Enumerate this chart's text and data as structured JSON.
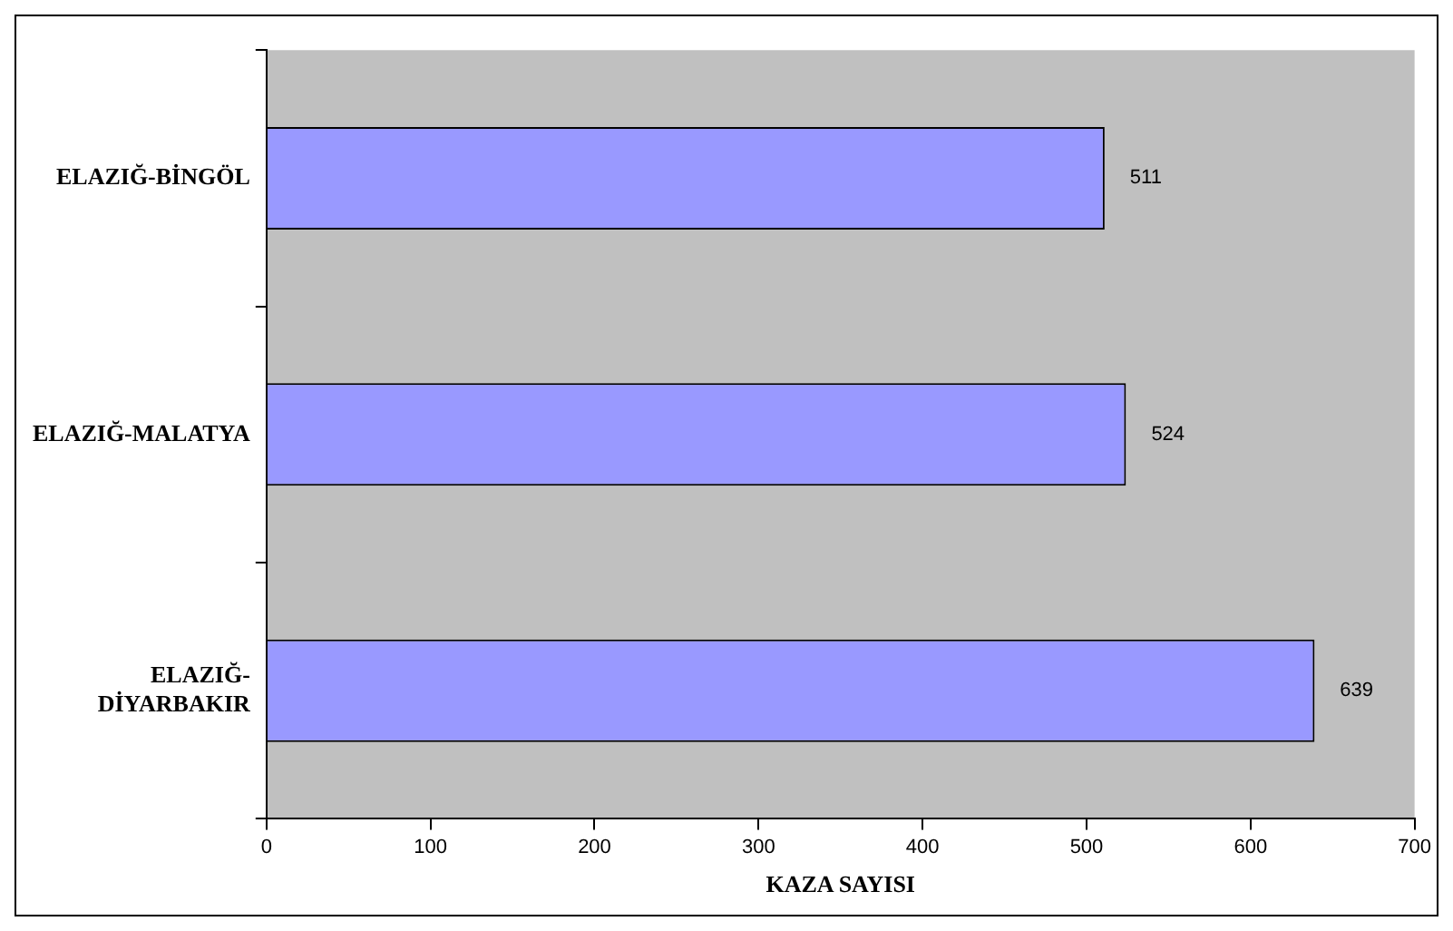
{
  "chart_data": {
    "type": "bar",
    "orientation": "horizontal",
    "xlabel": "KAZA SAYISI",
    "categories": [
      "ELAZIĞ-BİNGÖL",
      "ELAZIĞ-MALATYA",
      "ELAZIĞ-DİYARBAKIR"
    ],
    "values": [
      511,
      524,
      639
    ],
    "color": "#9999ff",
    "xlim": [
      0,
      700
    ],
    "xticks": [
      0,
      100,
      200,
      300,
      400,
      500,
      600,
      700
    ],
    "data_labels": true,
    "grid": false,
    "legend": false
  }
}
